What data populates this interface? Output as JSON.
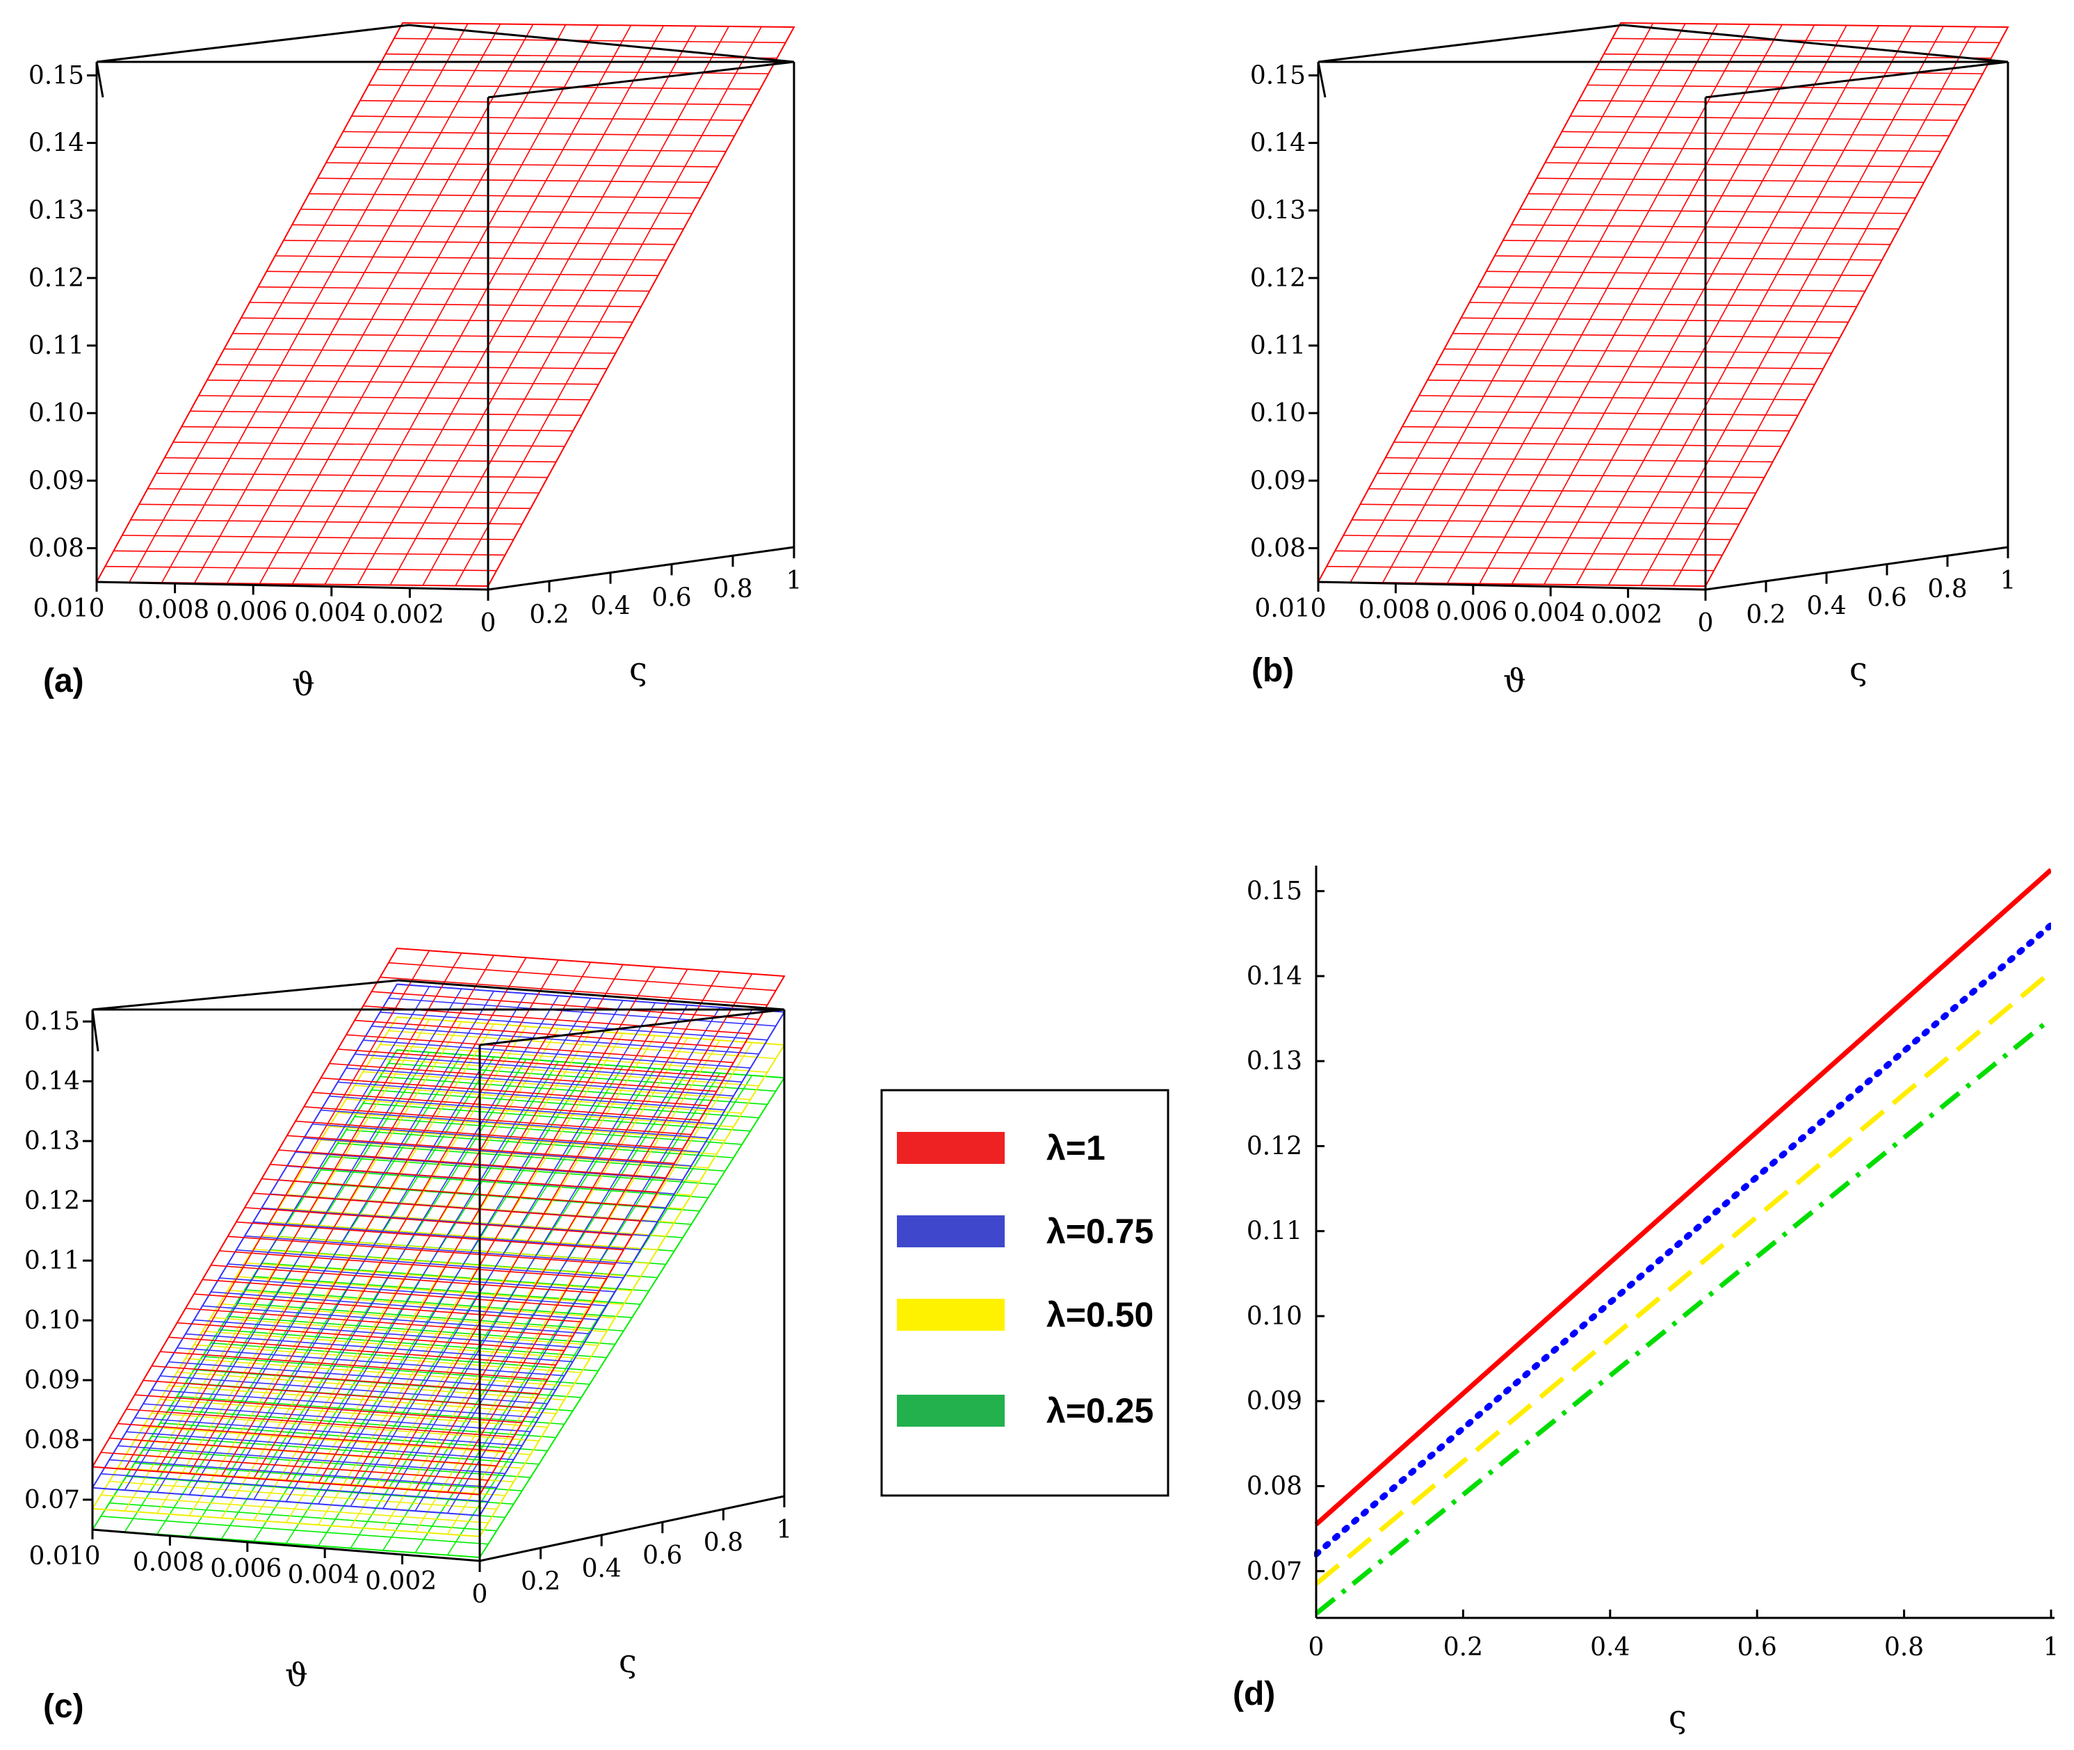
{
  "chart_data": [
    {
      "panel": "(a)",
      "type": "surface3d",
      "x_axis_label": "ϑ",
      "y_axis_label": "ς",
      "x_ticks": [
        "0.010",
        "0.008",
        "0.006",
        "0.004",
        "0.002"
      ],
      "y_ticks": [
        "0",
        "0.2",
        "0.4",
        "0.6",
        "0.8",
        "1"
      ],
      "z_ticks": [
        "0.15",
        "0.14",
        "0.13",
        "0.12",
        "0.11",
        "0.10",
        "0.09",
        "0.08"
      ],
      "xlim": [
        0,
        0.01
      ],
      "ylim": [
        0,
        1
      ],
      "zlim": [
        0.075,
        0.152
      ],
      "surfaces": [
        {
          "name": "λ=1",
          "color": "#ff0000",
          "at_s0": 0.075,
          "at_s1": 0.152
        }
      ]
    },
    {
      "panel": "(b)",
      "type": "surface3d",
      "x_axis_label": "ϑ",
      "y_axis_label": "ς",
      "x_ticks": [
        "0.010",
        "0.008",
        "0.006",
        "0.004",
        "0.002"
      ],
      "y_ticks": [
        "0",
        "0.2",
        "0.4",
        "0.6",
        "0.8",
        "1"
      ],
      "z_ticks": [
        "0.15",
        "0.14",
        "0.13",
        "0.12",
        "0.11",
        "0.10",
        "0.09",
        "0.08"
      ],
      "xlim": [
        0,
        0.01
      ],
      "ylim": [
        0,
        1
      ],
      "zlim": [
        0.075,
        0.152
      ],
      "surfaces": [
        {
          "name": "λ=0.75",
          "color": "#ff0000",
          "at_s0": 0.075,
          "at_s1": 0.152
        }
      ]
    },
    {
      "panel": "(c)",
      "type": "surface3d",
      "x_axis_label": "ϑ",
      "y_axis_label": "ς",
      "x_ticks": [
        "0.010",
        "0.008",
        "0.006",
        "0.004",
        "0.002"
      ],
      "y_ticks": [
        "0",
        "0.2",
        "0.4",
        "0.6",
        "0.8",
        "1"
      ],
      "z_ticks": [
        "0.15",
        "0.14",
        "0.13",
        "0.12",
        "0.11",
        "0.10",
        "0.09",
        "0.08",
        "0.07"
      ],
      "xlim": [
        0,
        0.01
      ],
      "ylim": [
        0,
        1
      ],
      "zlim": [
        0.065,
        0.152
      ],
      "surfaces": [
        {
          "name": "λ=0.25",
          "color": "#00ee00",
          "at_s0": 0.065,
          "at_s1": 0.135
        },
        {
          "name": "λ=0.50",
          "color": "#eeee00",
          "at_s0": 0.0685,
          "at_s1": 0.1405
        },
        {
          "name": "λ=0.75",
          "color": "#3333ff",
          "at_s0": 0.072,
          "at_s1": 0.146
        },
        {
          "name": "λ=1",
          "color": "#ff0000",
          "at_s0": 0.0755,
          "at_s1": 0.152
        }
      ]
    },
    {
      "panel": "(d)",
      "type": "line",
      "xlabel": "ς",
      "ylabel": "",
      "xlim": [
        0,
        1
      ],
      "ylim": [
        0.0645,
        0.153
      ],
      "x_ticks": [
        "0",
        "0.2",
        "0.4",
        "0.6",
        "0.8",
        "1"
      ],
      "y_ticks": [
        "0.15",
        "0.14",
        "0.13",
        "0.12",
        "0.11",
        "0.10",
        "0.09",
        "0.08",
        "0.07"
      ],
      "series": [
        {
          "name": "λ=1",
          "style": "solid",
          "color": "#ff0000",
          "x": [
            0,
            1
          ],
          "values": [
            0.0755,
            0.1525
          ]
        },
        {
          "name": "λ=0.75",
          "style": "dotted",
          "color": "#0000ff",
          "x": [
            0,
            1
          ],
          "values": [
            0.072,
            0.146
          ]
        },
        {
          "name": "λ=0.50",
          "style": "dash",
          "color": "#ffee00",
          "x": [
            0,
            1
          ],
          "values": [
            0.0685,
            0.1405
          ]
        },
        {
          "name": "λ=0.25",
          "style": "dashdot",
          "color": "#00dd00",
          "x": [
            0,
            1
          ],
          "values": [
            0.065,
            0.135
          ]
        }
      ]
    }
  ],
  "legend": {
    "items": [
      {
        "label": "λ=1",
        "color": "#ee2222"
      },
      {
        "label": "λ=0.75",
        "color": "#3f48cc"
      },
      {
        "label": "λ=0.50",
        "color": "#fff200"
      },
      {
        "label": "λ=0.25",
        "color": "#22b14c"
      }
    ]
  }
}
